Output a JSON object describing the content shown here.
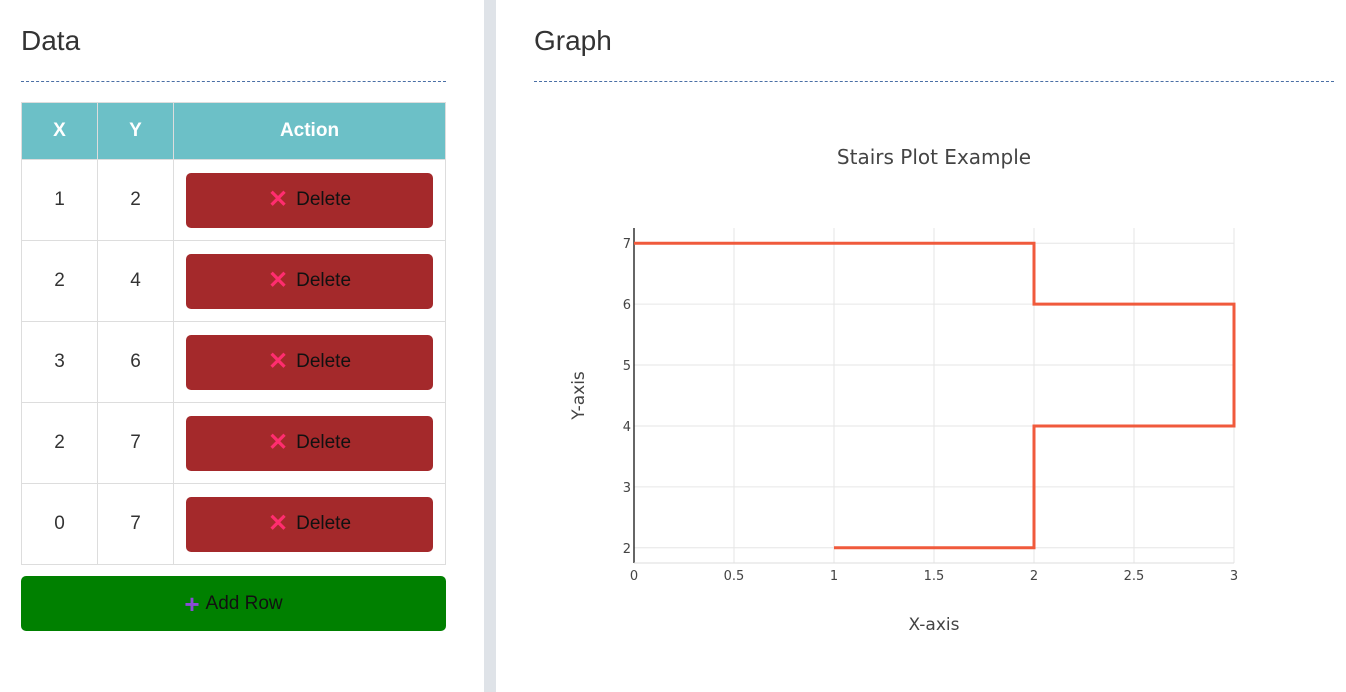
{
  "data_panel": {
    "title": "Data",
    "table": {
      "headers": [
        "X",
        "Y",
        "Action"
      ],
      "rows": [
        {
          "x": "1",
          "y": "2"
        },
        {
          "x": "2",
          "y": "4"
        },
        {
          "x": "3",
          "y": "6"
        },
        {
          "x": "2",
          "y": "7"
        },
        {
          "x": "0",
          "y": "7"
        }
      ],
      "delete_label": "Delete",
      "delete_icon": "x-icon"
    },
    "add_row_label": "Add Row",
    "add_row_icon": "plus-icon"
  },
  "graph_panel": {
    "title": "Graph"
  },
  "chart_data": {
    "type": "line",
    "line_shape": "stairs",
    "title": "Stairs Plot Example",
    "xlabel": "X-axis",
    "ylabel": "Y-axis",
    "x": [
      1,
      2,
      3,
      2,
      0
    ],
    "y": [
      2,
      4,
      6,
      7,
      7
    ],
    "xlim": [
      0,
      3
    ],
    "ylim": [
      1.75,
      7.25
    ],
    "xticks": [
      0,
      0.5,
      1,
      1.5,
      2,
      2.5,
      3
    ],
    "xtick_labels": [
      "0",
      "0.5",
      "1",
      "1.5",
      "2",
      "2.5",
      "3"
    ],
    "yticks": [
      2,
      3,
      4,
      5,
      6,
      7
    ],
    "ytick_labels": [
      "2",
      "3",
      "4",
      "5",
      "6",
      "7"
    ],
    "grid": true,
    "line_color": "#f05a3c"
  }
}
